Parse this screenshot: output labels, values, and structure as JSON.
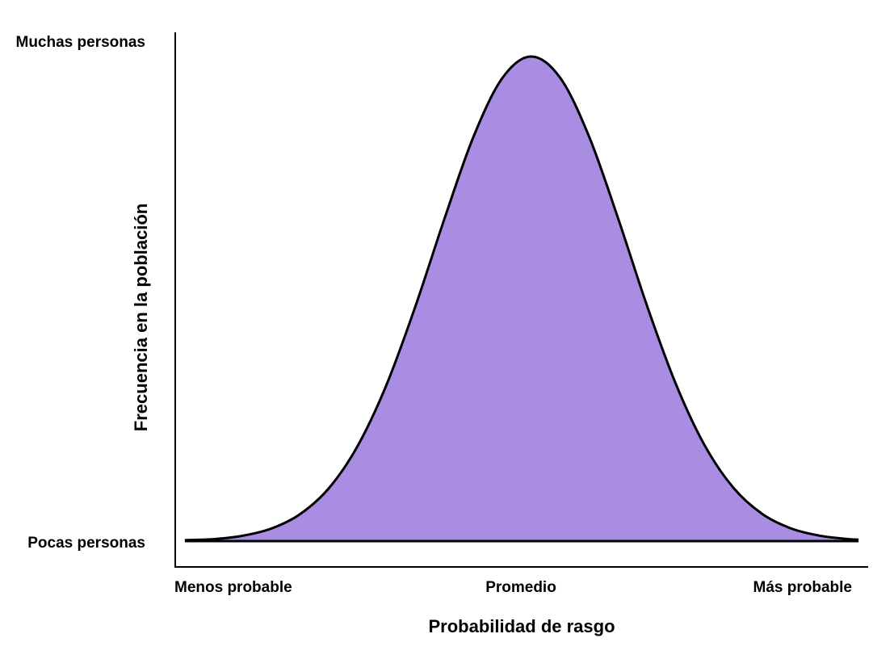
{
  "chart_data": {
    "type": "area",
    "title": "",
    "xlabel": "Probabilidad de rasgo",
    "ylabel": "Frecuencia en la población",
    "x_tick_labels": [
      "Menos probable",
      "Promedio",
      "Más probable"
    ],
    "y_tick_labels": [
      "Pocas personas",
      "Muchas personas"
    ],
    "xlim": [
      -3.7,
      3.5
    ],
    "ylim": [
      0,
      1
    ],
    "x": [
      -3.6,
      -3.3,
      -3.0,
      -2.7,
      -2.4,
      -2.1,
      -1.8,
      -1.5,
      -1.2,
      -0.9,
      -0.6,
      -0.3,
      0.0,
      0.3,
      0.6,
      0.9,
      1.2,
      1.5,
      1.8,
      2.1,
      2.4,
      2.7,
      3.0,
      3.3,
      3.4
    ],
    "y": [
      0.002,
      0.004,
      0.011,
      0.026,
      0.056,
      0.11,
      0.198,
      0.325,
      0.487,
      0.667,
      0.835,
      0.956,
      1.0,
      0.956,
      0.835,
      0.667,
      0.487,
      0.325,
      0.198,
      0.11,
      0.056,
      0.026,
      0.011,
      0.004,
      0.003
    ],
    "series_color": "#A98DE3",
    "line_color": "#000000",
    "grid": false,
    "legend": "none"
  }
}
